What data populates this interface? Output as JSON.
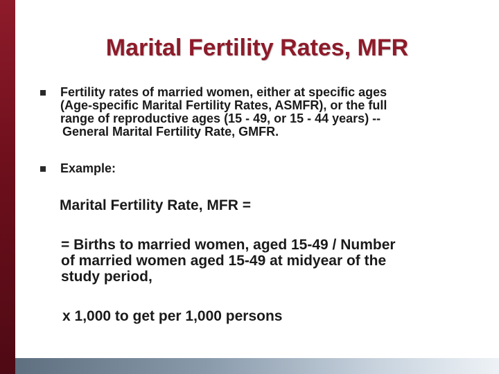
{
  "slide": {
    "title": "Marital Fertility Rates, MFR",
    "bullets": [
      {
        "lines": [
          "Fertility rates of married women, either at specific ages",
          "(Age-specific Marital Fertility Rates, ASMFR), or the full",
          "range of reproductive ages  (15 - 49, or 15 - 44 years) --",
          "General Marital Fertility Rate, GMFR."
        ]
      },
      {
        "lines": [
          "Example:"
        ]
      }
    ],
    "formula_title": "Marital Fertility Rate, MFR  =",
    "formula_lines": [
      "= Births to married women, aged 15-49 / Number",
      "of married women aged 15-49 at midyear of the",
      "study period,"
    ],
    "multiplier": "x 1,000  to get per 1,000 persons"
  },
  "colors": {
    "accent": "#8e1b2a",
    "bottom_bar": "#8a9bac"
  }
}
